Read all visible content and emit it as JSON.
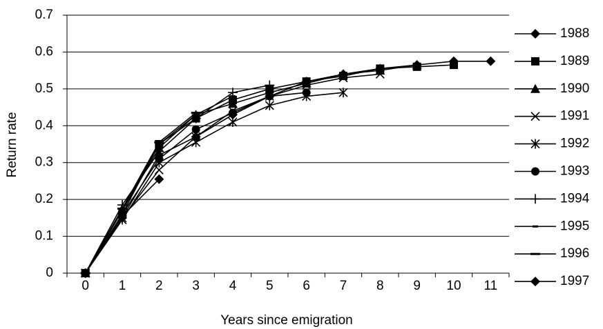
{
  "chart_data": {
    "type": "line",
    "x_label": "Years since emigration",
    "y_label": "Return rate",
    "categories": [
      "0",
      "1",
      "2",
      "3",
      "4",
      "5",
      "6",
      "7",
      "8",
      "9",
      "10",
      "11"
    ],
    "ylim": [
      0,
      0.7
    ],
    "yticks": [
      0,
      0.1,
      0.2,
      0.3,
      0.4,
      0.5,
      0.6,
      0.7
    ],
    "grid": true,
    "legend": "right",
    "series": [
      {
        "name": "1988",
        "color": "#000000",
        "marker": "diamond",
        "values": [
          0,
          0.15,
          0.32,
          0.37,
          0.43,
          0.48,
          0.52,
          0.54,
          0.555,
          0.565,
          0.575,
          0.575
        ]
      },
      {
        "name": "1989",
        "color": "#000000",
        "marker": "square",
        "values": [
          0,
          0.16,
          0.35,
          0.42,
          0.47,
          0.5,
          0.52,
          0.535,
          0.555,
          0.56,
          0.565,
          null
        ]
      },
      {
        "name": "1990",
        "color": "#000000",
        "marker": "triangle",
        "values": [
          0,
          0.17,
          0.34,
          0.43,
          0.46,
          0.49,
          0.515,
          0.54,
          0.55,
          0.565,
          null,
          null
        ]
      },
      {
        "name": "1991",
        "color": "#000000",
        "marker": "x",
        "values": [
          0,
          0.15,
          0.28,
          0.37,
          0.44,
          0.48,
          0.51,
          0.53,
          0.54,
          null,
          null,
          null
        ]
      },
      {
        "name": "1992",
        "color": "#000000",
        "marker": "star",
        "values": [
          0,
          0.145,
          0.3,
          0.355,
          0.41,
          0.455,
          0.48,
          0.49,
          null,
          null,
          null,
          null
        ]
      },
      {
        "name": "1993",
        "color": "#000000",
        "marker": "circle",
        "values": [
          0,
          0.16,
          0.31,
          0.39,
          0.435,
          0.48,
          0.49,
          null,
          null,
          null,
          null,
          null
        ]
      },
      {
        "name": "1994",
        "color": "#000000",
        "marker": "plus",
        "values": [
          0,
          0.185,
          0.33,
          0.42,
          0.49,
          0.51,
          null,
          null,
          null,
          null,
          null,
          null
        ]
      },
      {
        "name": "1995",
        "color": "#000000",
        "marker": "dash",
        "values": [
          0,
          0.17,
          0.35,
          0.43,
          0.48,
          null,
          null,
          null,
          null,
          null,
          null,
          null
        ]
      },
      {
        "name": "1996",
        "color": "#000000",
        "marker": "longdash",
        "values": [
          0,
          0.175,
          0.355,
          0.435,
          null,
          null,
          null,
          null,
          null,
          null,
          null,
          null
        ]
      },
      {
        "name": "1997",
        "color": "#000000",
        "marker": "diamond",
        "values": [
          0,
          0.155,
          0.255,
          null,
          null,
          null,
          null,
          null,
          null,
          null,
          null,
          null
        ]
      }
    ]
  }
}
